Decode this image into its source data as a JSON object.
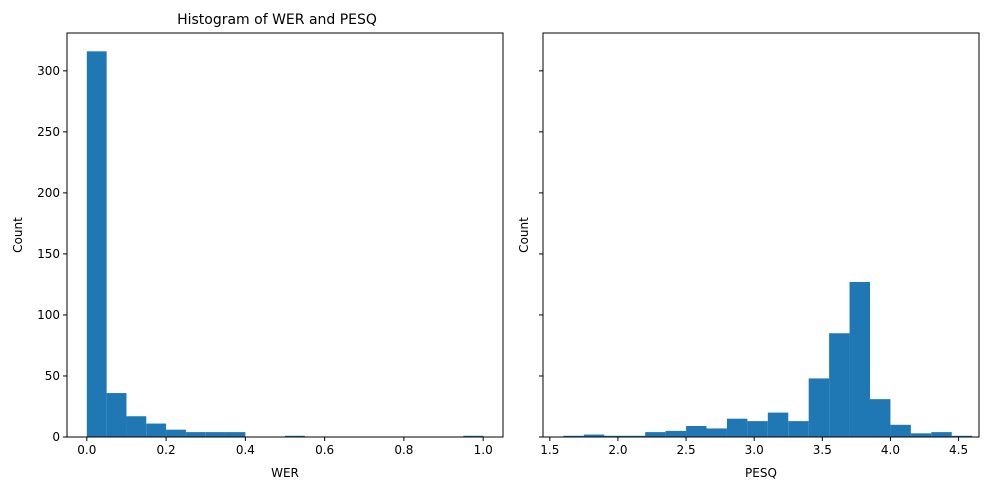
{
  "chart_data": [
    {
      "type": "bar",
      "title": "Histogram of WER and PESQ",
      "xlabel": "WER",
      "ylabel": "Count",
      "xlim": [
        -0.05,
        1.05
      ],
      "ylim": [
        0,
        331
      ],
      "xticks": [
        0.0,
        0.2,
        0.4,
        0.6,
        0.8,
        1.0
      ],
      "xtick_labels": [
        "0.0",
        "0.2",
        "0.4",
        "0.6",
        "0.8",
        "1.0"
      ],
      "yticks": [
        0,
        50,
        100,
        150,
        200,
        250,
        300
      ],
      "ytick_labels": [
        "0",
        "50",
        "100",
        "150",
        "200",
        "250",
        "300"
      ],
      "bin_edges": [
        0.0,
        0.05,
        0.1,
        0.15,
        0.2,
        0.25,
        0.3,
        0.35,
        0.4,
        0.45,
        0.5,
        0.55,
        0.6,
        0.65,
        0.7,
        0.75,
        0.8,
        0.85,
        0.9,
        0.95,
        1.0
      ],
      "values": [
        316,
        36,
        17,
        11,
        6,
        4,
        4,
        4,
        0,
        0,
        1,
        0,
        0,
        0,
        0,
        0,
        0,
        0,
        0,
        1
      ],
      "color": "#1f77b4",
      "grid": false
    },
    {
      "type": "bar",
      "title": "",
      "xlabel": "PESQ",
      "ylabel": "Count",
      "xlim": [
        1.45,
        4.65
      ],
      "ylim": [
        0,
        331
      ],
      "shared_y": true,
      "xticks": [
        1.5,
        2.0,
        2.5,
        3.0,
        3.5,
        4.0,
        4.5
      ],
      "xtick_labels": [
        "1.5",
        "2.0",
        "2.5",
        "3.0",
        "3.5",
        "4.0",
        "4.5"
      ],
      "yticks": [
        0,
        50,
        100,
        150,
        200,
        250,
        300
      ],
      "bin_edges": [
        1.6,
        1.75,
        1.9,
        2.05,
        2.2,
        2.35,
        2.5,
        2.65,
        2.8,
        2.95,
        3.1,
        3.25,
        3.4,
        3.55,
        3.7,
        3.85,
        4.0,
        4.15,
        4.3,
        4.45,
        4.6
      ],
      "values": [
        1,
        2,
        1,
        1,
        4,
        5,
        9,
        7,
        15,
        13,
        20,
        13,
        48,
        85,
        127,
        31,
        10,
        3,
        4,
        1
      ],
      "color": "#1f77b4",
      "grid": false
    }
  ]
}
